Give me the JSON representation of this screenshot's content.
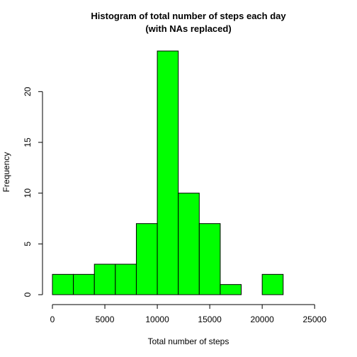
{
  "chart_data": {
    "type": "bar",
    "title": "Histogram of total number of steps each day",
    "subtitle": "(with NAs replaced)",
    "xlabel": "Total number of steps",
    "ylabel": "Frequency",
    "bar_color": "#00ff00",
    "bins": [
      {
        "start": 0,
        "end": 2000,
        "count": 2
      },
      {
        "start": 2000,
        "end": 4000,
        "count": 2
      },
      {
        "start": 4000,
        "end": 6000,
        "count": 3
      },
      {
        "start": 6000,
        "end": 8000,
        "count": 3
      },
      {
        "start": 8000,
        "end": 10000,
        "count": 7
      },
      {
        "start": 10000,
        "end": 12000,
        "count": 24
      },
      {
        "start": 12000,
        "end": 14000,
        "count": 10
      },
      {
        "start": 14000,
        "end": 16000,
        "count": 7
      },
      {
        "start": 16000,
        "end": 18000,
        "count": 1
      },
      {
        "start": 18000,
        "end": 20000,
        "count": 0
      },
      {
        "start": 20000,
        "end": 22000,
        "count": 2
      },
      {
        "start": 22000,
        "end": 24000,
        "count": 0
      },
      {
        "start": 24000,
        "end": 26000,
        "count": 0
      }
    ],
    "xlim": [
      0,
      26000
    ],
    "ylim": [
      0,
      24
    ],
    "x_ticks": [
      {
        "value": 0,
        "label": "0"
      },
      {
        "value": 5000,
        "label": "5000"
      },
      {
        "value": 10000,
        "label": "10000"
      },
      {
        "value": 15000,
        "label": "15000"
      },
      {
        "value": 20000,
        "label": "20000"
      },
      {
        "value": 25000,
        "label": "25000"
      }
    ],
    "y_ticks": [
      {
        "value": 0,
        "label": "0"
      },
      {
        "value": 5,
        "label": "5"
      },
      {
        "value": 10,
        "label": "10"
      },
      {
        "value": 15,
        "label": "15"
      },
      {
        "value": 20,
        "label": "20"
      }
    ],
    "grid": false
  }
}
